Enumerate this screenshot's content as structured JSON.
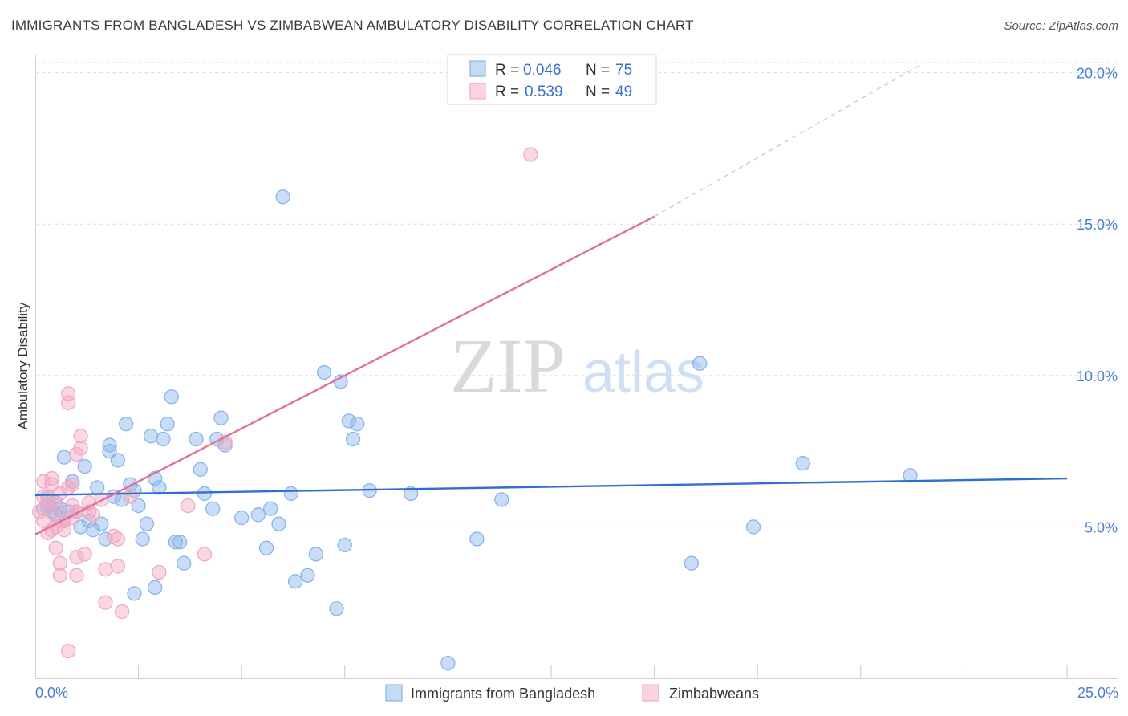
{
  "title": "IMMIGRANTS FROM BANGLADESH VS ZIMBABWEAN AMBULATORY DISABILITY CORRELATION CHART",
  "source": "Source: ZipAtlas.com",
  "chart_data": {
    "type": "scatter",
    "ylabel": "Ambulatory Disability",
    "xlabel": "",
    "xlim": [
      0,
      25
    ],
    "ylim": [
      0,
      20.6
    ],
    "x_tick_labels": [
      {
        "value": 0,
        "label": "0.0%"
      },
      {
        "value": 25,
        "label": "25.0%"
      }
    ],
    "y_tick_labels": [
      {
        "value": 5,
        "label": "5.0%"
      },
      {
        "value": 10,
        "label": "10.0%"
      },
      {
        "value": 15,
        "label": "15.0%"
      },
      {
        "value": 20,
        "label": "20.0%"
      }
    ],
    "watermark": {
      "zip": "ZIP",
      "atlas": "atlas"
    },
    "legend": [
      {
        "r_label": "R =",
        "r_value": "0.046",
        "n_label": "N =",
        "n_value": "75",
        "color": "#8ab4ea"
      },
      {
        "r_label": "R =",
        "r_value": "0.539",
        "n_label": "N =",
        "n_value": "49",
        "color": "#f2a9c0"
      }
    ],
    "series": [
      {
        "name": "Immigrants from Bangladesh",
        "color": "#8ab4ea",
        "line_color": "#2f6fd0",
        "trend": {
          "x0": 0,
          "y0": 6.05,
          "x1": 25,
          "y1": 6.6
        },
        "points": [
          [
            0.2,
            5.6
          ],
          [
            0.3,
            5.7
          ],
          [
            0.4,
            5.5
          ],
          [
            0.5,
            5.4
          ],
          [
            0.6,
            5.6
          ],
          [
            0.7,
            5.2
          ],
          [
            0.8,
            5.5
          ],
          [
            0.9,
            6.5
          ],
          [
            0.7,
            7.3
          ],
          [
            1.2,
            7.0
          ],
          [
            1.1,
            5.0
          ],
          [
            1.4,
            4.9
          ],
          [
            1.5,
            6.3
          ],
          [
            1.6,
            5.1
          ],
          [
            1.7,
            4.6
          ],
          [
            1.8,
            7.7
          ],
          [
            1.8,
            7.5
          ],
          [
            2.0,
            7.2
          ],
          [
            2.1,
            5.9
          ],
          [
            2.2,
            8.4
          ],
          [
            2.3,
            6.4
          ],
          [
            2.4,
            6.2
          ],
          [
            2.5,
            5.7
          ],
          [
            2.6,
            4.6
          ],
          [
            2.7,
            5.1
          ],
          [
            2.8,
            8.0
          ],
          [
            2.9,
            6.6
          ],
          [
            3.0,
            6.3
          ],
          [
            3.1,
            7.9
          ],
          [
            3.2,
            8.4
          ],
          [
            3.3,
            9.3
          ],
          [
            3.4,
            4.5
          ],
          [
            3.5,
            4.5
          ],
          [
            3.6,
            3.8
          ],
          [
            3.9,
            7.9
          ],
          [
            4.0,
            6.9
          ],
          [
            4.1,
            6.1
          ],
          [
            4.3,
            5.6
          ],
          [
            4.4,
            7.9
          ],
          [
            4.5,
            8.6
          ],
          [
            4.6,
            7.7
          ],
          [
            5.0,
            5.3
          ],
          [
            5.4,
            5.4
          ],
          [
            5.6,
            4.3
          ],
          [
            5.7,
            5.6
          ],
          [
            5.9,
            5.1
          ],
          [
            6.0,
            15.9
          ],
          [
            6.2,
            6.1
          ],
          [
            6.3,
            3.2
          ],
          [
            6.6,
            3.4
          ],
          [
            6.8,
            4.1
          ],
          [
            7.0,
            10.1
          ],
          [
            7.3,
            2.3
          ],
          [
            7.4,
            9.8
          ],
          [
            7.5,
            4.4
          ],
          [
            7.6,
            8.5
          ],
          [
            7.7,
            7.9
          ],
          [
            7.8,
            8.4
          ],
          [
            8.1,
            6.2
          ],
          [
            9.1,
            6.1
          ],
          [
            10.0,
            0.5
          ],
          [
            10.7,
            4.6
          ],
          [
            11.3,
            5.9
          ],
          [
            15.9,
            3.8
          ],
          [
            16.1,
            10.4
          ],
          [
            17.4,
            5.0
          ],
          [
            18.6,
            7.1
          ],
          [
            21.2,
            6.7
          ],
          [
            1.0,
            5.5
          ],
          [
            1.3,
            5.2
          ],
          [
            0.5,
            5.8
          ],
          [
            2.4,
            2.8
          ],
          [
            2.9,
            3.0
          ],
          [
            0.3,
            6.0
          ],
          [
            1.9,
            6.0
          ]
        ]
      },
      {
        "name": "Zimbabweans",
        "color": "#f2a9c0",
        "line_color": "#e0709a",
        "trend": {
          "x0": 0,
          "y0": 4.75,
          "x1": 15,
          "y1": 15.25
        },
        "trend_ext": {
          "x0": 15,
          "y0": 15.25,
          "x1": 21.5,
          "y1": 20.3
        },
        "points": [
          [
            0.1,
            5.5
          ],
          [
            0.2,
            5.2
          ],
          [
            0.2,
            6.5
          ],
          [
            0.3,
            4.8
          ],
          [
            0.3,
            5.9
          ],
          [
            0.4,
            6.4
          ],
          [
            0.4,
            6.6
          ],
          [
            0.5,
            5.0
          ],
          [
            0.5,
            4.3
          ],
          [
            0.6,
            6.1
          ],
          [
            0.6,
            3.8
          ],
          [
            0.6,
            3.4
          ],
          [
            0.7,
            5.2
          ],
          [
            0.8,
            9.4
          ],
          [
            0.8,
            9.1
          ],
          [
            0.9,
            6.4
          ],
          [
            0.9,
            5.3
          ],
          [
            1.0,
            5.5
          ],
          [
            1.0,
            4.0
          ],
          [
            1.0,
            3.4
          ],
          [
            1.1,
            8.0
          ],
          [
            1.1,
            7.6
          ],
          [
            1.2,
            4.1
          ],
          [
            1.3,
            5.8
          ],
          [
            1.3,
            5.5
          ],
          [
            1.6,
            5.9
          ],
          [
            1.7,
            3.6
          ],
          [
            1.7,
            2.5
          ],
          [
            1.9,
            4.7
          ],
          [
            2.0,
            4.6
          ],
          [
            2.0,
            3.7
          ],
          [
            2.1,
            2.2
          ],
          [
            3.0,
            3.5
          ],
          [
            3.7,
            5.7
          ],
          [
            4.1,
            4.1
          ],
          [
            4.6,
            7.8
          ],
          [
            12.0,
            17.3
          ],
          [
            0.2,
            6.0
          ],
          [
            0.4,
            4.9
          ],
          [
            0.8,
            6.3
          ],
          [
            1.4,
            5.4
          ],
          [
            0.3,
            5.6
          ],
          [
            0.7,
            4.9
          ],
          [
            1.0,
            7.4
          ],
          [
            2.3,
            6.0
          ],
          [
            0.5,
            5.7
          ],
          [
            0.6,
            5.2
          ],
          [
            0.9,
            5.7
          ],
          [
            0.8,
            0.9
          ]
        ]
      }
    ]
  },
  "bottom_legend": [
    "Immigrants from Bangladesh",
    "Zimbabweans"
  ]
}
